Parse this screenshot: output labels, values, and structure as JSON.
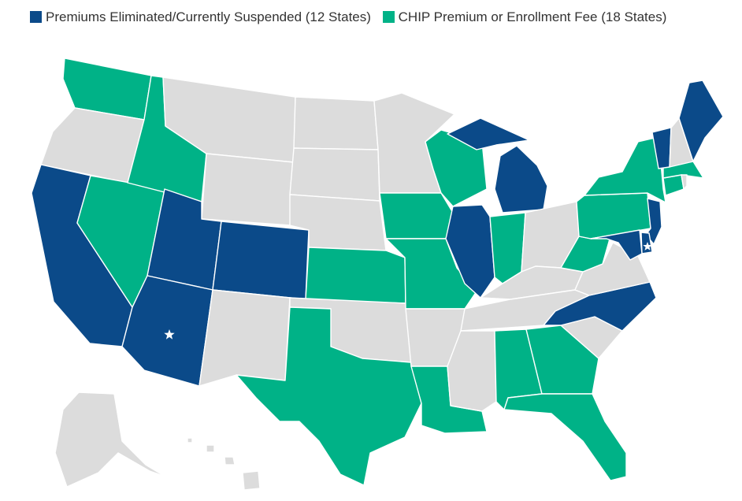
{
  "legend": {
    "items": [
      {
        "label": "Premiums Eliminated/Currently Suspended (12 States)",
        "color": "#0b4a89"
      },
      {
        "label": "CHIP Premium or Enrollment Fee (18 States)",
        "color": "#00b287"
      }
    ]
  },
  "colors": {
    "suspended": "#0b4a89",
    "fee": "#00b287",
    "none": "#dcdcdc"
  },
  "states": {
    "WA": "fee",
    "OR": "none",
    "CA": "suspended",
    "NV": "fee",
    "ID": "fee",
    "MT": "none",
    "WY": "none",
    "UT": "suspended",
    "AZ": "suspended",
    "CO": "suspended",
    "NM": "none",
    "ND": "none",
    "SD": "none",
    "NE": "none",
    "KS": "fee",
    "OK": "none",
    "TX": "fee",
    "MN": "none",
    "IA": "fee",
    "MO": "fee",
    "AR": "none",
    "LA": "fee",
    "WI": "fee",
    "IL": "suspended",
    "MI": "suspended",
    "IN": "fee",
    "OH": "none",
    "KY": "none",
    "TN": "none",
    "MS": "none",
    "AL": "fee",
    "GA": "fee",
    "FL": "fee",
    "SC": "none",
    "NC": "suspended",
    "VA": "none",
    "WV": "fee",
    "PA": "fee",
    "NY": "fee",
    "VT": "suspended",
    "NH": "none",
    "ME": "suspended",
    "MA": "fee",
    "CT": "fee",
    "NJ": "suspended",
    "DE": "suspended",
    "MD": "suspended",
    "AK": "none",
    "HI": "none"
  },
  "starred_states": [
    "AZ",
    "MD"
  ]
}
